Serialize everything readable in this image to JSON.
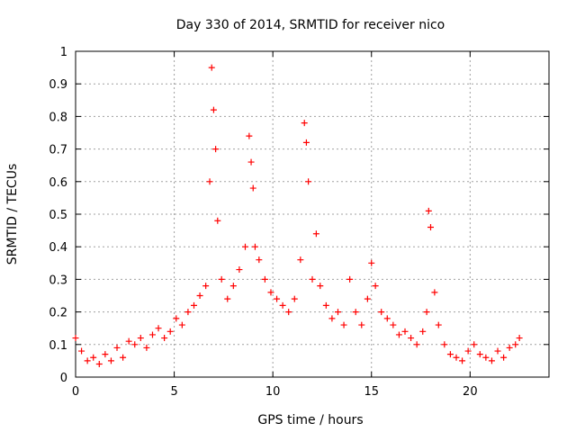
{
  "chart_data": {
    "type": "scatter",
    "title": "Day 330 of 2014, SRMTID for receiver nico",
    "xlabel": "GPS time / hours",
    "ylabel": "SRMTID / TECUs",
    "xlim": [
      0,
      24
    ],
    "ylim": [
      0,
      1
    ],
    "x_ticks": [
      0,
      5,
      10,
      15,
      20
    ],
    "x_tick_labels": [
      "0",
      "5",
      "10",
      "15",
      "20"
    ],
    "y_ticks": [
      0,
      0.1,
      0.2,
      0.3,
      0.4,
      0.5,
      0.6,
      0.7,
      0.8,
      0.9,
      1
    ],
    "y_tick_labels": [
      "0",
      "0.1",
      "0.2",
      "0.3",
      "0.4",
      "0.5",
      "0.6",
      "0.7",
      "0.8",
      "0.9",
      "1"
    ],
    "grid": true,
    "marker": "+",
    "series": [
      {
        "name": "SRMTID",
        "color": "#ff0000",
        "x": [
          0.0,
          0.3,
          0.6,
          0.9,
          1.2,
          1.5,
          1.8,
          2.1,
          2.4,
          2.7,
          3.0,
          3.3,
          3.6,
          3.9,
          4.2,
          4.5,
          4.8,
          5.1,
          5.4,
          5.7,
          6.0,
          6.3,
          6.6,
          6.8,
          6.9,
          7.0,
          7.1,
          7.2,
          7.4,
          7.7,
          8.0,
          8.3,
          8.6,
          8.8,
          8.9,
          9.0,
          9.1,
          9.3,
          9.6,
          9.9,
          10.2,
          10.5,
          10.8,
          11.1,
          11.4,
          11.6,
          11.7,
          11.8,
          12.0,
          12.2,
          12.4,
          12.7,
          13.0,
          13.3,
          13.6,
          13.9,
          14.2,
          14.5,
          14.8,
          15.0,
          15.2,
          15.5,
          15.8,
          16.1,
          16.4,
          16.7,
          17.0,
          17.3,
          17.6,
          17.8,
          17.9,
          18.0,
          18.2,
          18.4,
          18.7,
          19.0,
          19.3,
          19.6,
          19.9,
          20.2,
          20.5,
          20.8,
          21.1,
          21.4,
          21.7,
          22.0,
          22.3,
          22.5
        ],
        "y": [
          0.12,
          0.08,
          0.05,
          0.06,
          0.04,
          0.07,
          0.05,
          0.09,
          0.06,
          0.11,
          0.1,
          0.12,
          0.09,
          0.13,
          0.15,
          0.12,
          0.14,
          0.18,
          0.16,
          0.2,
          0.22,
          0.25,
          0.28,
          0.6,
          0.95,
          0.82,
          0.7,
          0.48,
          0.3,
          0.24,
          0.28,
          0.33,
          0.4,
          0.74,
          0.66,
          0.58,
          0.4,
          0.36,
          0.3,
          0.26,
          0.24,
          0.22,
          0.2,
          0.24,
          0.36,
          0.78,
          0.72,
          0.6,
          0.3,
          0.44,
          0.28,
          0.22,
          0.18,
          0.2,
          0.16,
          0.3,
          0.2,
          0.16,
          0.24,
          0.35,
          0.28,
          0.2,
          0.18,
          0.16,
          0.13,
          0.14,
          0.12,
          0.1,
          0.14,
          0.2,
          0.51,
          0.46,
          0.26,
          0.16,
          0.1,
          0.07,
          0.06,
          0.05,
          0.08,
          0.1,
          0.07,
          0.06,
          0.05,
          0.08,
          0.06,
          0.09,
          0.1,
          0.12
        ]
      }
    ]
  }
}
